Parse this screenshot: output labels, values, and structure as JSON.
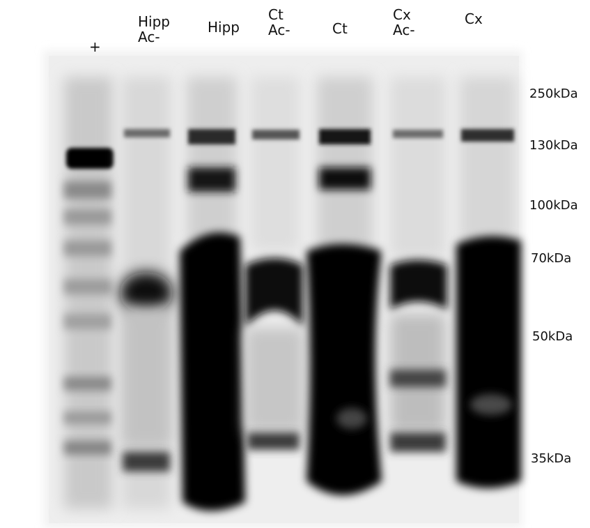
{
  "figure": {
    "background_color": "#ffffff",
    "membrane_color": "#f2f2f2",
    "band_color": "#000000"
  },
  "lanes": [
    {
      "id": "plus",
      "line1": "+",
      "line2": ""
    },
    {
      "id": "hipp-ac",
      "line1": "Hipp",
      "line2": "Ac-"
    },
    {
      "id": "hipp",
      "line1": "Hipp",
      "line2": ""
    },
    {
      "id": "ct-ac",
      "line1": "Ct",
      "line2": "Ac-"
    },
    {
      "id": "ct",
      "line1": "Ct",
      "line2": ""
    },
    {
      "id": "cx-ac",
      "line1": "Cx",
      "line2": "Ac-"
    },
    {
      "id": "cx",
      "line1": "Cx",
      "line2": ""
    }
  ],
  "markers": [
    {
      "label": "250kDa"
    },
    {
      "label": "130kDa"
    },
    {
      "label": "100kDa"
    },
    {
      "label": "70kDa"
    },
    {
      "label": "50kDa"
    },
    {
      "label": "35kDa"
    }
  ]
}
